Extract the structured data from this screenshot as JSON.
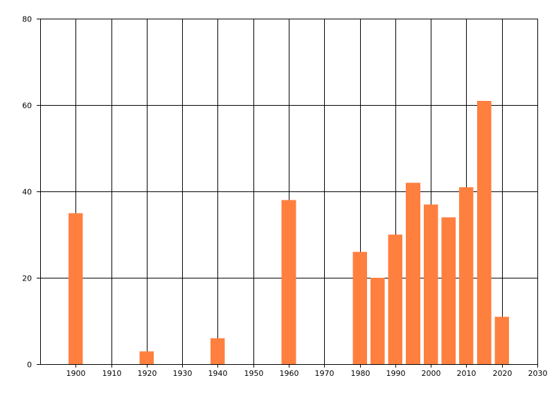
{
  "chart_data": {
    "type": "bar",
    "title": "",
    "xlabel": "",
    "ylabel": "",
    "xlim": [
      1890,
      2030
    ],
    "ylim": [
      0,
      80
    ],
    "x_ticks": [
      1900,
      1910,
      1920,
      1930,
      1940,
      1950,
      1960,
      1970,
      1980,
      1990,
      2000,
      2010,
      2020,
      2030
    ],
    "y_ticks": [
      0,
      20,
      40,
      60,
      80
    ],
    "grid": true,
    "legend": "none",
    "bar_width_years": 4,
    "series": [
      {
        "color": "#ff7f3f",
        "points": [
          {
            "x": 1900,
            "y": 35
          },
          {
            "x": 1920,
            "y": 3
          },
          {
            "x": 1940,
            "y": 6
          },
          {
            "x": 1960,
            "y": 38
          },
          {
            "x": 1980,
            "y": 26
          },
          {
            "x": 1985,
            "y": 20
          },
          {
            "x": 1990,
            "y": 30
          },
          {
            "x": 1995,
            "y": 42
          },
          {
            "x": 2000,
            "y": 37
          },
          {
            "x": 2005,
            "y": 34
          },
          {
            "x": 2010,
            "y": 41
          },
          {
            "x": 2015,
            "y": 61
          },
          {
            "x": 2020,
            "y": 11
          }
        ]
      }
    ]
  }
}
